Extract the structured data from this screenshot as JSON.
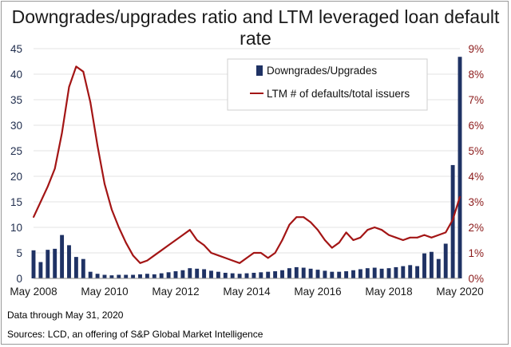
{
  "chart_data": {
    "type": "bar+line",
    "title": "Downgrades/upgrades ratio and LTM leveraged loan default rate",
    "x_tick_labels": [
      "May 2008",
      "May 2010",
      "May 2012",
      "May 2014",
      "May 2016",
      "May 2018",
      "May 2020"
    ],
    "left_axis": {
      "min": 0,
      "max": 45,
      "ticks": [
        "0",
        "5",
        "10",
        "15",
        "20",
        "25",
        "30",
        "35",
        "40",
        "45"
      ]
    },
    "right_axis": {
      "min": 0,
      "max": 9,
      "ticks": [
        "0%",
        "1%",
        "2%",
        "3%",
        "4%",
        "5%",
        "6%",
        "7%",
        "8%",
        "9%"
      ]
    },
    "legend": {
      "bars": "Downgrades/Upgrades",
      "line": "LTM # of defaults/total issuers",
      "position": "top-right"
    },
    "series": [
      {
        "name": "Downgrades/Upgrades",
        "type": "bar",
        "axis": "left",
        "color": "#1f3264",
        "x": [
          2008.4,
          2008.6,
          2008.8,
          2009.0,
          2009.2,
          2009.4,
          2009.6,
          2009.8,
          2010.0,
          2010.2,
          2010.4,
          2010.6,
          2010.8,
          2011.0,
          2011.2,
          2011.4,
          2011.6,
          2011.8,
          2012.0,
          2012.2,
          2012.4,
          2012.6,
          2012.8,
          2013.0,
          2013.2,
          2013.4,
          2013.6,
          2013.8,
          2014.0,
          2014.2,
          2014.4,
          2014.6,
          2014.8,
          2015.0,
          2015.2,
          2015.4,
          2015.6,
          2015.8,
          2016.0,
          2016.2,
          2016.4,
          2016.6,
          2016.8,
          2017.0,
          2017.2,
          2017.4,
          2017.6,
          2017.8,
          2018.0,
          2018.2,
          2018.4,
          2018.6,
          2018.8,
          2019.0,
          2019.2,
          2019.4,
          2019.6,
          2019.8,
          2020.0,
          2020.2,
          2020.4
        ],
        "values": [
          5.5,
          3.2,
          5.6,
          5.8,
          8.5,
          6.5,
          4.2,
          3.8,
          1.3,
          0.9,
          0.7,
          0.6,
          0.7,
          0.7,
          0.7,
          0.8,
          0.9,
          0.8,
          1.0,
          1.2,
          1.4,
          1.6,
          2.0,
          1.9,
          1.8,
          1.5,
          1.3,
          1.1,
          1.0,
          0.9,
          1.0,
          1.1,
          1.2,
          1.3,
          1.4,
          1.6,
          2.0,
          2.2,
          2.1,
          1.9,
          1.7,
          1.5,
          1.3,
          1.3,
          1.4,
          1.6,
          1.8,
          2.0,
          2.1,
          1.9,
          2.0,
          2.2,
          2.4,
          2.6,
          2.4,
          4.9,
          5.2,
          3.8,
          6.8,
          22.2,
          43.4
        ]
      },
      {
        "name": "LTM # of defaults/total issuers",
        "type": "line",
        "axis": "right",
        "unit": "%",
        "color": "#a31515",
        "x": [
          2008.4,
          2008.6,
          2008.8,
          2009.0,
          2009.2,
          2009.4,
          2009.6,
          2009.8,
          2010.0,
          2010.2,
          2010.4,
          2010.6,
          2010.8,
          2011.0,
          2011.2,
          2011.4,
          2011.6,
          2011.8,
          2012.0,
          2012.2,
          2012.4,
          2012.6,
          2012.8,
          2013.0,
          2013.2,
          2013.4,
          2013.6,
          2013.8,
          2014.0,
          2014.2,
          2014.4,
          2014.6,
          2014.8,
          2015.0,
          2015.2,
          2015.4,
          2015.6,
          2015.8,
          2016.0,
          2016.2,
          2016.4,
          2016.6,
          2016.8,
          2017.0,
          2017.2,
          2017.4,
          2017.6,
          2017.8,
          2018.0,
          2018.2,
          2018.4,
          2018.6,
          2018.8,
          2019.0,
          2019.2,
          2019.4,
          2019.6,
          2019.8,
          2020.0,
          2020.2,
          2020.4
        ],
        "values": [
          2.4,
          3.0,
          3.6,
          4.3,
          5.7,
          7.5,
          8.3,
          8.1,
          6.9,
          5.2,
          3.7,
          2.7,
          2.0,
          1.4,
          0.9,
          0.6,
          0.7,
          0.9,
          1.1,
          1.3,
          1.5,
          1.7,
          1.9,
          1.5,
          1.3,
          1.0,
          0.9,
          0.8,
          0.7,
          0.6,
          0.8,
          1.0,
          1.0,
          0.8,
          1.0,
          1.5,
          2.1,
          2.4,
          2.4,
          2.2,
          1.9,
          1.5,
          1.2,
          1.4,
          1.8,
          1.5,
          1.6,
          1.9,
          2.0,
          1.9,
          1.7,
          1.6,
          1.5,
          1.6,
          1.6,
          1.7,
          1.6,
          1.7,
          1.8,
          2.3,
          3.2
        ]
      }
    ]
  },
  "footer": {
    "note": "Data through May 31, 2020",
    "sources": "Sources: LCD, an offering of S&P Global Market Intelligence"
  }
}
